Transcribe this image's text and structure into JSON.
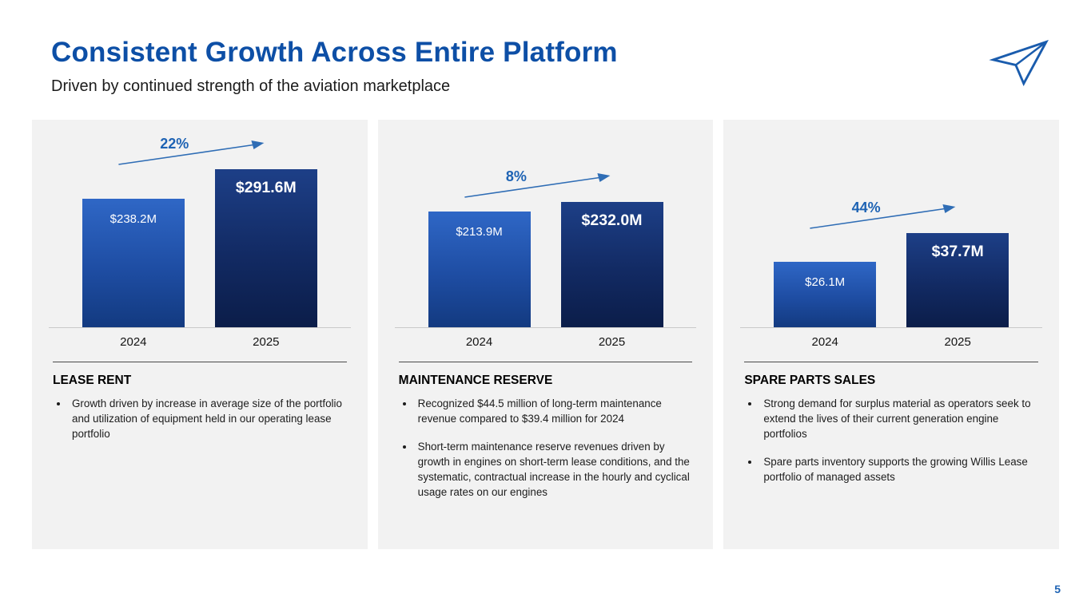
{
  "slide": {
    "title": "Consistent Growth Across Entire Platform",
    "subtitle": "Driven by continued strength of the aviation marketplace",
    "page_number": "5"
  },
  "colors": {
    "title_blue": "#0d4fa6",
    "growth_blue": "#1e63b4",
    "bar_2024_gradient": [
      "#2f67c6",
      "#133a80"
    ],
    "bar_2025_gradient": [
      "#1d3f87",
      "#0b1d49"
    ],
    "panel_background": "#f2f2f2"
  },
  "chart_data": [
    {
      "type": "bar",
      "title": "Lease Rent revenue ($M)",
      "categories": [
        "2024",
        "2025"
      ],
      "values": [
        238.2,
        291.6
      ],
      "value_labels": [
        "$238.2M",
        "$291.6M"
      ],
      "growth_label": "22%",
      "ylim": [
        0,
        310
      ],
      "grid": false,
      "legend": "none"
    },
    {
      "type": "bar",
      "title": "Maintenance Reserve revenue ($M)",
      "categories": [
        "2024",
        "2025"
      ],
      "values": [
        213.9,
        232.0
      ],
      "value_labels": [
        "$213.9M",
        "$232.0M"
      ],
      "growth_label": "8%",
      "ylim": [
        0,
        310
      ],
      "grid": false,
      "legend": "none"
    },
    {
      "type": "bar",
      "title": "Spare Parts Sales revenue ($M)",
      "categories": [
        "2024",
        "2025"
      ],
      "values": [
        26.1,
        37.7
      ],
      "value_labels": [
        "$26.1M",
        "$37.7M"
      ],
      "growth_label": "44%",
      "ylim": [
        0,
        67
      ],
      "grid": false,
      "legend": "none"
    }
  ],
  "panels": [
    {
      "heading": "LEASE RENT",
      "bullets": [
        "Growth driven by increase in average size of the portfolio and utilization of equipment held in our operating lease portfolio"
      ]
    },
    {
      "heading": "MAINTENANCE RESERVE",
      "bullets": [
        "Recognized $44.5 million of long-term maintenance revenue compared to $39.4 million for 2024",
        "Short-term maintenance reserve revenues driven by growth in engines on short-term lease conditions, and the systematic, contractual increase in the hourly and cyclical usage rates on our engines"
      ]
    },
    {
      "heading": "SPARE PARTS SALES",
      "bullets": [
        "Strong demand for surplus material as operators seek to extend the lives of their current generation engine portfolios",
        "Spare parts inventory supports the growing Willis Lease portfolio of managed assets"
      ]
    }
  ]
}
